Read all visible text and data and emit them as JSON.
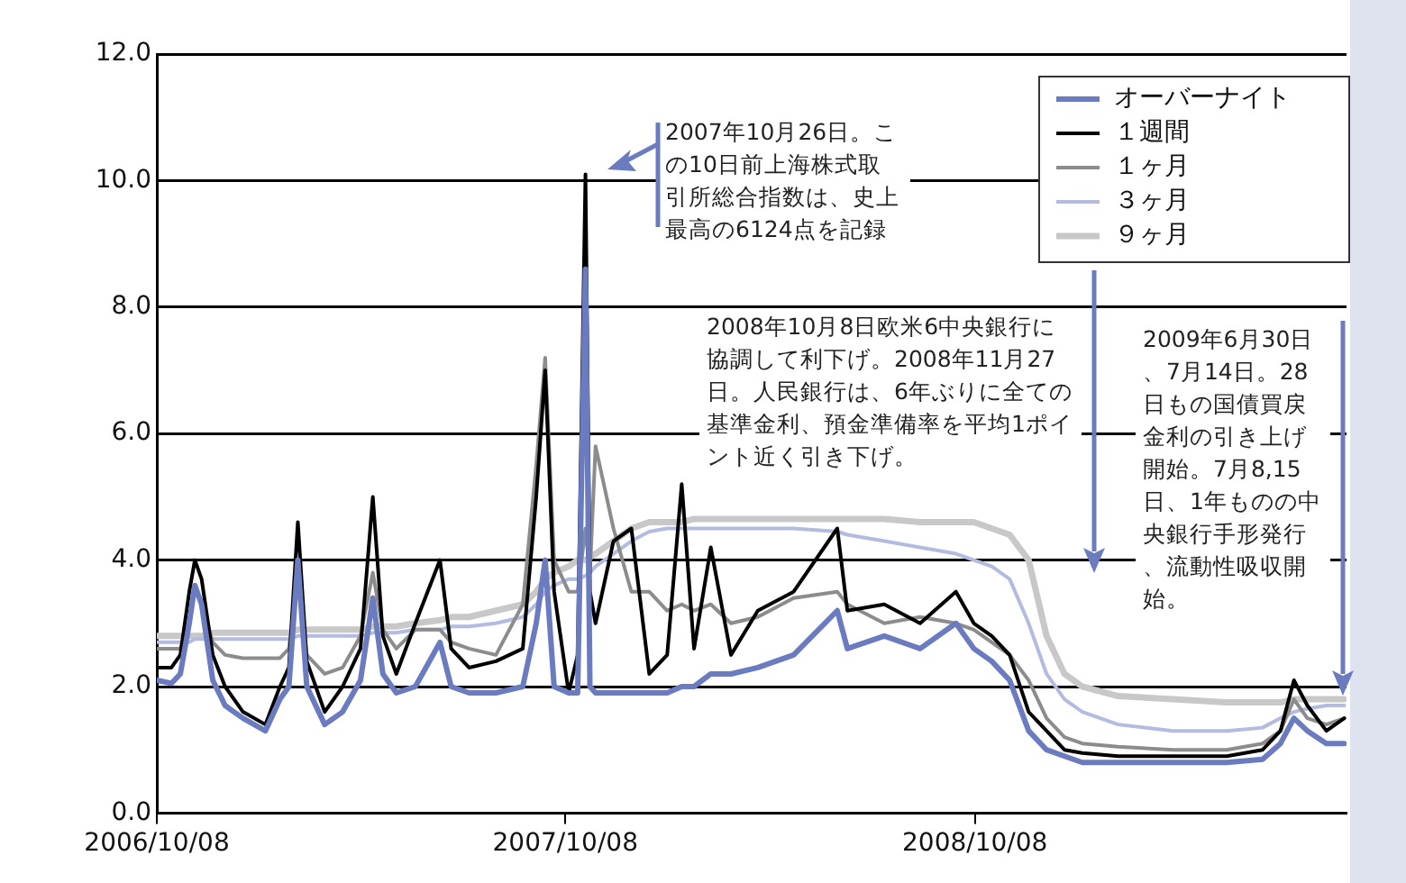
{
  "chart_data": {
    "type": "line",
    "x": [
      "2006-10-08",
      "2006-10-21",
      "2006-10-29",
      "2006-11-06",
      "2006-11-11",
      "2006-11-17",
      "2006-11-27",
      "2006-12-08",
      "2006-12-24",
      "2007-01-13",
      "2007-01-26",
      "2007-02-03",
      "2007-02-11",
      "2007-02-19",
      "2007-03-07",
      "2007-03-23",
      "2007-04-08",
      "2007-04-19",
      "2007-04-28",
      "2007-05-10",
      "2007-05-27",
      "2007-06-18",
      "2007-06-28",
      "2007-07-14",
      "2007-08-07",
      "2007-08-31",
      "2007-09-12",
      "2007-09-20",
      "2007-09-28",
      "2007-10-11",
      "2007-10-19",
      "2007-10-26",
      "2007-10-30",
      "2007-11-04",
      "2007-11-20",
      "2007-12-06",
      "2007-12-22",
      "2008-01-07",
      "2008-01-20",
      "2008-01-31",
      "2008-02-15",
      "2008-03-04",
      "2008-03-28",
      "2008-04-29",
      "2008-06-07",
      "2008-06-16",
      "2008-07-19",
      "2008-08-20",
      "2008-09-21",
      "2008-10-07",
      "2008-10-23",
      "2008-11-08",
      "2008-11-25",
      "2008-12-11",
      "2008-12-27",
      "2009-01-12",
      "2009-02-13",
      "2009-04-03",
      "2009-05-21",
      "2009-06-22",
      "2009-07-08",
      "2009-07-20",
      "2009-08-01",
      "2009-08-18",
      "2009-09-03"
    ],
    "series": [
      {
        "name": "オーバーナイト",
        "color": "#6b7bbf",
        "values": [
          2.1,
          2.05,
          2.2,
          3.0,
          3.6,
          3.3,
          2.1,
          1.7,
          1.5,
          1.3,
          1.8,
          2.0,
          4.0,
          2.0,
          1.4,
          1.6,
          2.1,
          3.4,
          2.2,
          1.9,
          2.0,
          2.7,
          2.0,
          1.9,
          1.9,
          2.0,
          3.0,
          4.0,
          2.0,
          1.9,
          1.9,
          8.6,
          2.0,
          1.9,
          1.9,
          1.9,
          1.9,
          1.9,
          2.0,
          2.0,
          2.2,
          2.2,
          2.3,
          2.5,
          3.2,
          2.6,
          2.8,
          2.6,
          3.0,
          2.6,
          2.4,
          2.1,
          1.3,
          1.0,
          0.9,
          0.8,
          0.8,
          0.8,
          0.8,
          0.85,
          1.1,
          1.5,
          1.3,
          1.1,
          1.1
        ]
      },
      {
        "name": "１週間",
        "color": "#000000",
        "values": [
          2.3,
          2.3,
          2.5,
          3.5,
          4.0,
          3.7,
          2.5,
          2.0,
          1.6,
          1.4,
          2.0,
          2.3,
          4.6,
          2.4,
          1.6,
          2.0,
          2.6,
          5.0,
          2.8,
          2.2,
          3.0,
          4.0,
          2.6,
          2.3,
          2.4,
          2.6,
          5.0,
          7.0,
          3.5,
          1.9,
          2.5,
          10.1,
          3.5,
          3.0,
          4.3,
          4.5,
          2.2,
          2.5,
          5.2,
          2.6,
          4.2,
          2.5,
          3.2,
          3.5,
          4.5,
          3.2,
          3.3,
          3.0,
          3.5,
          3.0,
          2.8,
          2.5,
          1.6,
          1.3,
          1.0,
          0.95,
          0.9,
          0.9,
          0.9,
          1.0,
          1.3,
          2.1,
          1.7,
          1.3,
          1.5
        ]
      },
      {
        "name": "１ヶ月",
        "color": "#8c8c8c",
        "values": [
          2.6,
          2.6,
          2.6,
          3.0,
          3.6,
          3.3,
          2.7,
          2.5,
          2.45,
          2.45,
          2.45,
          2.6,
          3.7,
          2.5,
          2.2,
          2.3,
          2.8,
          3.8,
          2.9,
          2.6,
          2.9,
          2.9,
          2.7,
          2.6,
          2.5,
          3.3,
          5.5,
          7.2,
          4.0,
          3.5,
          3.5,
          4.5,
          3.8,
          5.8,
          4.5,
          3.5,
          3.5,
          3.2,
          3.3,
          3.2,
          3.3,
          3.0,
          3.1,
          3.4,
          3.5,
          3.3,
          3.0,
          3.1,
          3.0,
          2.9,
          2.7,
          2.5,
          2.1,
          1.5,
          1.2,
          1.1,
          1.05,
          1.0,
          1.0,
          1.1,
          1.3,
          1.8,
          1.5,
          1.4,
          1.5
        ]
      },
      {
        "name": "３ヶ月",
        "color": "#b3bbe0",
        "values": [
          2.7,
          2.7,
          2.7,
          2.7,
          2.75,
          2.75,
          2.75,
          2.75,
          2.75,
          2.75,
          2.75,
          2.75,
          2.8,
          2.8,
          2.8,
          2.8,
          2.8,
          2.85,
          2.85,
          2.85,
          2.9,
          2.9,
          2.95,
          2.95,
          3.0,
          3.1,
          3.3,
          3.5,
          3.6,
          3.7,
          3.7,
          3.75,
          3.8,
          3.9,
          4.1,
          4.3,
          4.45,
          4.5,
          4.5,
          4.5,
          4.5,
          4.5,
          4.5,
          4.5,
          4.45,
          4.4,
          4.3,
          4.2,
          4.1,
          4.0,
          3.9,
          3.7,
          3.0,
          2.2,
          1.8,
          1.6,
          1.4,
          1.3,
          1.3,
          1.35,
          1.5,
          1.6,
          1.65,
          1.7,
          1.7
        ]
      },
      {
        "name": "９ヶ月",
        "color": "#c8c8c8",
        "values": [
          2.8,
          2.8,
          2.8,
          2.8,
          2.8,
          2.8,
          2.85,
          2.85,
          2.85,
          2.85,
          2.85,
          2.85,
          2.9,
          2.9,
          2.9,
          2.9,
          2.9,
          2.95,
          2.95,
          2.95,
          3.0,
          3.05,
          3.1,
          3.1,
          3.2,
          3.3,
          3.5,
          3.7,
          3.8,
          3.9,
          4.0,
          4.0,
          4.05,
          4.1,
          4.3,
          4.5,
          4.6,
          4.6,
          4.6,
          4.65,
          4.65,
          4.65,
          4.65,
          4.65,
          4.65,
          4.65,
          4.65,
          4.6,
          4.6,
          4.6,
          4.5,
          4.4,
          4.0,
          2.8,
          2.2,
          2.0,
          1.85,
          1.8,
          1.75,
          1.75,
          1.75,
          1.8,
          1.8,
          1.8,
          1.8
        ]
      }
    ],
    "xlim": [
      "2006-10-08",
      "2009-09-05"
    ],
    "xticks": [
      {
        "value": "2006-10-08",
        "label": "2006/10/08"
      },
      {
        "value": "2007-10-08",
        "label": "2007/10/08"
      },
      {
        "value": "2008-10-08",
        "label": "2008/10/08"
      }
    ],
    "ylim": [
      0,
      12
    ],
    "yticks": [
      {
        "value": 0,
        "label": "0.0"
      },
      {
        "value": 2,
        "label": "2.0"
      },
      {
        "value": 4,
        "label": "4.0"
      },
      {
        "value": 6,
        "label": "6.0"
      },
      {
        "value": 8,
        "label": "8.0"
      },
      {
        "value": 10,
        "label": "10.0"
      },
      {
        "value": 12,
        "label": "12.0"
      }
    ],
    "grid": "y",
    "legend": "top right",
    "marker": "none",
    "line_style": "solid",
    "annotations": [
      "2007年10月26日。この10日前上海株式取引所総合指数は、史上最高の6124点を記録",
      "2008年10月8日欧米6中央銀行に協調して利下げ。2008年11月27日。人民銀行は、6年ぶりに全ての基準金利、預金準備率を平均1ポイント近く引き下げ。",
      "2009年6月30日、7月14日。28日もの国債買戻金利の引き上げ開始。7月8,15日、1年ものの中央銀行手形発行、流動性吸収開始。"
    ]
  }
}
